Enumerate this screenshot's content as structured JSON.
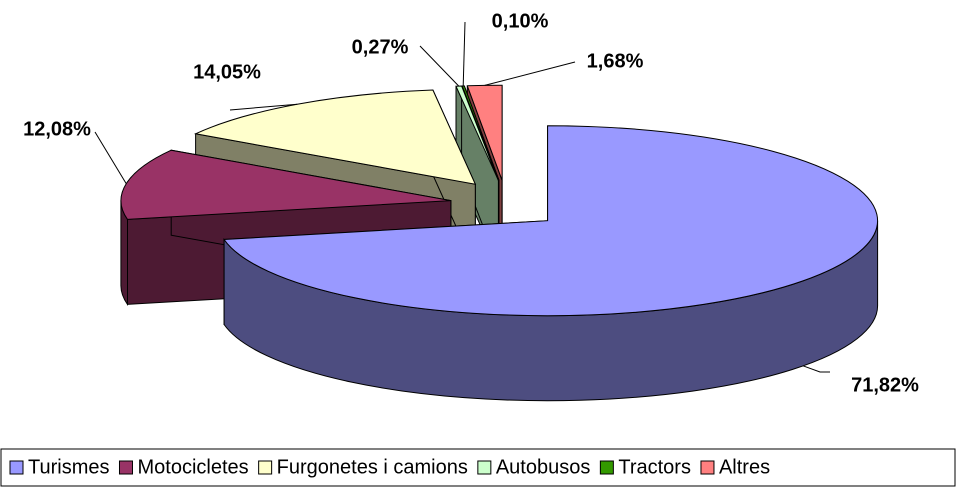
{
  "chart_data": {
    "type": "pie",
    "categories": [
      "Turismes",
      "Motocicletes",
      "Furgonetes i camions",
      "Autobusos",
      "Tractors",
      "Altres"
    ],
    "values": [
      71.82,
      12.08,
      14.05,
      0.27,
      0.1,
      1.68
    ],
    "value_labels": [
      "71,82%",
      "12,08%",
      "14,05%",
      "0,27%",
      "0,10%",
      "1,68%"
    ],
    "colors": [
      "#9999ff",
      "#993366",
      "#ffffcc",
      "#ccffcc",
      "#339900",
      "#ff8080"
    ],
    "legend": "bottom"
  }
}
